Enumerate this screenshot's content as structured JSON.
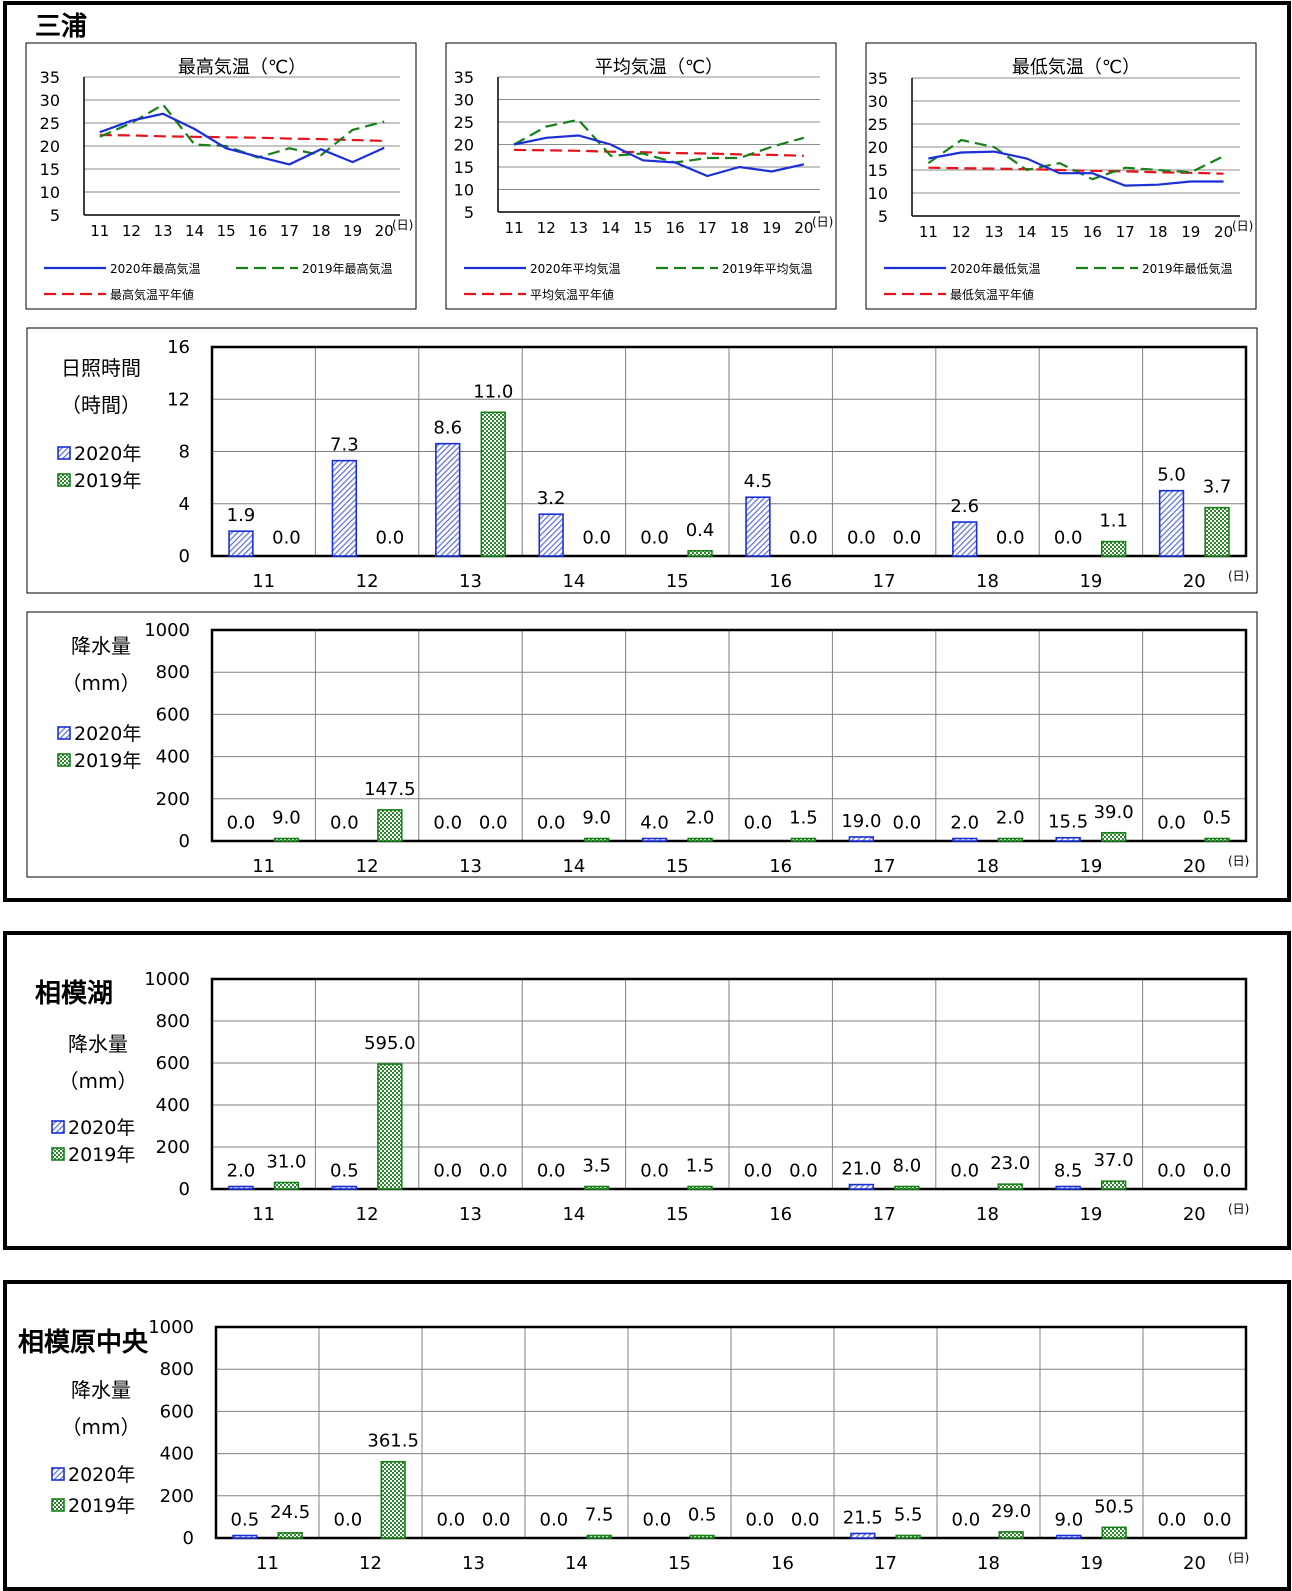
{
  "legend_labels": {
    "y2020": "2020年",
    "y2019": "2019年"
  },
  "day_unit": "(日)",
  "colors": {
    "y2020": "#1a2fd6",
    "y2019": "#198019",
    "normal": "#e8121c"
  },
  "sections": {
    "miura": {
      "title": "三浦"
    },
    "sagamiko": {
      "title": "相模湖"
    },
    "sagamihara": {
      "title": "相模原中央"
    }
  },
  "chart_data": [
    {
      "id": "miura_tmax",
      "type": "line",
      "title": "最高気温（℃）",
      "x": [
        11,
        12,
        13,
        14,
        15,
        16,
        17,
        18,
        19,
        20
      ],
      "ylim": [
        5,
        35
      ],
      "yticks": [
        5,
        10,
        15,
        20,
        25,
        30,
        35
      ],
      "series": [
        {
          "name": "2020年最高気温",
          "style": "solid",
          "values": [
            23.0,
            25.5,
            27.0,
            23.7,
            19.5,
            17.7,
            16.0,
            19.3,
            16.5,
            19.6
          ]
        },
        {
          "name": "2019年最高気温",
          "style": "dash",
          "values": [
            22.0,
            25.0,
            29.0,
            20.3,
            20.0,
            17.5,
            19.5,
            18.0,
            23.5,
            25.3
          ]
        },
        {
          "name": "最高気温平年値",
          "style": "dash",
          "values": [
            22.4,
            22.3,
            22.1,
            22.0,
            21.9,
            21.8,
            21.6,
            21.5,
            21.3,
            21.1
          ]
        }
      ]
    },
    {
      "id": "miura_tavg",
      "type": "line",
      "title": "平均気温（℃）",
      "x": [
        11,
        12,
        13,
        14,
        15,
        16,
        17,
        18,
        19,
        20
      ],
      "ylim": [
        5,
        35
      ],
      "yticks": [
        5,
        10,
        15,
        20,
        25,
        30,
        35
      ],
      "series": [
        {
          "name": "2020年平均気温",
          "style": "solid",
          "values": [
            20.0,
            21.5,
            22.0,
            20.0,
            16.5,
            16.0,
            13.0,
            15.0,
            14.0,
            15.6
          ]
        },
        {
          "name": "2019年平均気温",
          "style": "dash",
          "values": [
            20.0,
            24.0,
            25.5,
            17.5,
            18.0,
            16.0,
            17.0,
            17.0,
            19.5,
            21.5
          ]
        },
        {
          "name": "平均気温平年値",
          "style": "dash",
          "values": [
            18.8,
            18.7,
            18.6,
            18.4,
            18.3,
            18.1,
            18.0,
            17.8,
            17.7,
            17.5
          ]
        }
      ]
    },
    {
      "id": "miura_tmin",
      "type": "line",
      "title": "最低気温（℃）",
      "x": [
        11,
        12,
        13,
        14,
        15,
        16,
        17,
        18,
        19,
        20
      ],
      "ylim": [
        5,
        35
      ],
      "yticks": [
        5,
        10,
        15,
        20,
        25,
        30,
        35
      ],
      "series": [
        {
          "name": "2020年最低気温",
          "style": "solid",
          "values": [
            17.5,
            18.8,
            19.0,
            17.5,
            14.3,
            14.3,
            11.6,
            11.8,
            12.5,
            12.5
          ]
        },
        {
          "name": "2019年最低気温",
          "style": "dash",
          "values": [
            16.5,
            21.5,
            20.0,
            15.0,
            16.5,
            13.0,
            15.5,
            15.0,
            14.5,
            18.0
          ]
        },
        {
          "name": "最低気温平年値",
          "style": "dash",
          "values": [
            15.5,
            15.4,
            15.3,
            15.2,
            15.0,
            14.8,
            14.7,
            14.5,
            14.4,
            14.2
          ]
        }
      ]
    },
    {
      "id": "miura_sun",
      "type": "bar",
      "ylabel": [
        "日照時間",
        "（時間）"
      ],
      "categories": [
        11,
        12,
        13,
        14,
        15,
        16,
        17,
        18,
        19,
        20
      ],
      "ylim": [
        0,
        16
      ],
      "yticks": [
        0,
        4,
        8,
        12,
        16
      ],
      "series": [
        {
          "name": "2020年",
          "values": [
            1.9,
            7.3,
            8.6,
            3.2,
            0.0,
            4.5,
            0.0,
            2.6,
            0.0,
            5.0
          ]
        },
        {
          "name": "2019年",
          "values": [
            0.0,
            0.0,
            11.0,
            0.0,
            0.4,
            0.0,
            0.0,
            0.0,
            1.1,
            3.7
          ]
        }
      ]
    },
    {
      "id": "miura_rain",
      "type": "bar",
      "ylabel": [
        "降水量",
        "（mm）"
      ],
      "categories": [
        11,
        12,
        13,
        14,
        15,
        16,
        17,
        18,
        19,
        20
      ],
      "ylim": [
        0,
        1000
      ],
      "yticks": [
        0,
        200,
        400,
        600,
        800,
        1000
      ],
      "series": [
        {
          "name": "2020年",
          "values": [
            0.0,
            0.0,
            0.0,
            0.0,
            4.0,
            0.0,
            19.0,
            2.0,
            15.5,
            0.0
          ]
        },
        {
          "name": "2019年",
          "values": [
            9.0,
            147.5,
            0.0,
            9.0,
            2.0,
            1.5,
            0.0,
            2.0,
            39.0,
            0.5
          ]
        }
      ]
    },
    {
      "id": "sagamiko_rain",
      "type": "bar",
      "ylabel": [
        "降水量",
        "（mm）"
      ],
      "categories": [
        11,
        12,
        13,
        14,
        15,
        16,
        17,
        18,
        19,
        20
      ],
      "ylim": [
        0,
        1000
      ],
      "yticks": [
        0,
        200,
        400,
        600,
        800,
        1000
      ],
      "series": [
        {
          "name": "2020年",
          "values": [
            2.0,
            0.5,
            0.0,
            0.0,
            0.0,
            0.0,
            21.0,
            0.0,
            8.5,
            0.0
          ]
        },
        {
          "name": "2019年",
          "values": [
            31.0,
            595.0,
            0.0,
            3.5,
            1.5,
            0.0,
            8.0,
            23.0,
            37.0,
            0.0
          ]
        }
      ]
    },
    {
      "id": "sagamihara_rain",
      "type": "bar",
      "ylabel": [
        "降水量",
        "（mm）"
      ],
      "categories": [
        11,
        12,
        13,
        14,
        15,
        16,
        17,
        18,
        19,
        20
      ],
      "ylim": [
        0,
        1000
      ],
      "yticks": [
        0,
        200,
        400,
        600,
        800,
        1000
      ],
      "series": [
        {
          "name": "2020年",
          "values": [
            0.5,
            0.0,
            0.0,
            0.0,
            0.0,
            0.0,
            21.5,
            0.0,
            9.0,
            0.0
          ]
        },
        {
          "name": "2019年",
          "values": [
            24.5,
            361.5,
            0.0,
            7.5,
            0.5,
            0.0,
            5.5,
            29.0,
            50.5,
            0.0
          ]
        }
      ]
    }
  ]
}
